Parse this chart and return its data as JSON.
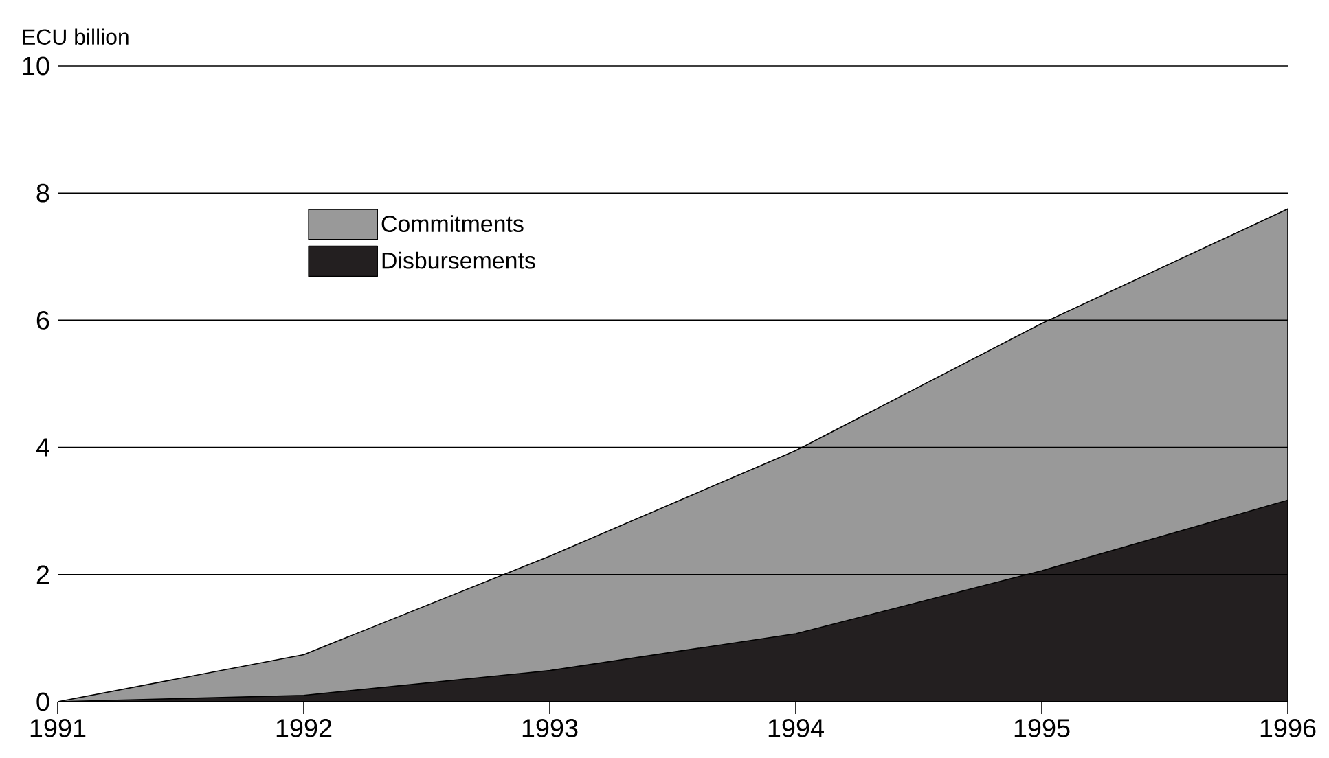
{
  "chart_data": {
    "type": "area",
    "ylabel": "ECU billion",
    "x": [
      1991,
      1992,
      1993,
      1994,
      1995,
      1996
    ],
    "series": [
      {
        "name": "Commitments",
        "color": "#999999",
        "values": [
          0,
          0.74,
          2.29,
          3.95,
          5.95,
          7.75
        ]
      },
      {
        "name": "Disbursements",
        "color": "#231f20",
        "values": [
          0,
          0.1,
          0.49,
          1.07,
          2.06,
          3.17
        ]
      }
    ],
    "xlim": [
      1991,
      1996
    ],
    "xticks": [
      1991,
      1992,
      1993,
      1994,
      1995,
      1996
    ],
    "ylim": [
      0,
      10
    ],
    "yticks": [
      0,
      2,
      4,
      6,
      8,
      10
    ],
    "grid": "y",
    "legend": "top left"
  }
}
